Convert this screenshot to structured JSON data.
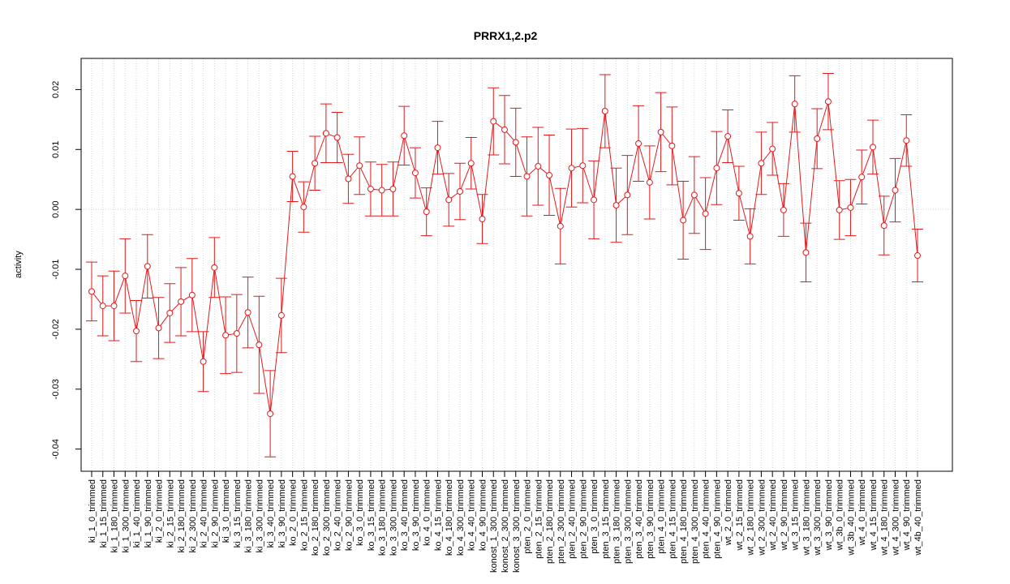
{
  "chart_data": {
    "type": "errorbar-line",
    "title": "PRRX1,2.p2",
    "y_label": "activity",
    "categories": [
      "ki_1_0_trimmed",
      "ki_1_15_trimmed",
      "ki_1_180_trimmed",
      "ki_1_300_trimmed",
      "ki_1_40_trimmed",
      "ki_1_90_trimmed",
      "ki_2_0_trimmed",
      "ki_2_15_trimmed",
      "ki_2_180_trimmed",
      "ki_2_300_trimmed",
      "ki_2_40_trimmed",
      "ki_2_90_trimmed",
      "ki_3_0_trimmed",
      "ki_3_15_trimmed",
      "ki_3_180_trimmed",
      "ki_3_300_trimmed",
      "ki_3_40_trimmed",
      "ki_3_90_trimmed",
      "ko_2_0_trimmed",
      "ko_2_15_trimmed",
      "ko_2_180_trimmed",
      "ko_2_300_trimmed",
      "ko_2_40_trimmed",
      "ko_2_90_trimmed",
      "ko_3_0_trimmed",
      "ko_3_15_trimmed",
      "ko_3_180_trimmed",
      "ko_3_300_trimmed",
      "ko_3_40_trimmed",
      "ko_3_90_trimmed",
      "ko_4_0_trimmed",
      "ko_4_15_trimmed",
      "ko_4_180_trimmed",
      "ko_4_300_trimmed",
      "ko_4_40_trimmed",
      "ko_4_90_trimmed",
      "konost_1_300_trimmed",
      "konost_2_300_trimmed",
      "konost_3_300_trimmed",
      "pten_2_0_trimmed",
      "pten_2_15_trimmed",
      "pten_2_180_trimmed",
      "pten_2_300_trimmed",
      "pten_2_40_trimmed",
      "pten_2_90_trimmed",
      "pten_3_0_trimmed",
      "pten_3_15_trimmed",
      "pten_3_180_trimmed",
      "pten_3_300_trimmed",
      "pten_3_40_trimmed",
      "pten_3_90_trimmed",
      "pten_4_0_trimmed",
      "pten_4_15_trimmed",
      "pten_4_180_trimmed",
      "pten_4_300_trimmed",
      "pten_4_40_trimmed",
      "pten_4_90_trimmed",
      "wt_2_0_trimmed",
      "wt_2_15_trimmed",
      "wt_2_180_trimmed",
      "wt_2_300_trimmed",
      "wt_2_40_trimmed",
      "wt_2_90_trimmed",
      "wt_3_15_trimmed",
      "wt_3_180_trimmed",
      "wt_3_300_trimmed",
      "wt_3_90_trimmed",
      "wt_3b_0_trimmed",
      "wt_3b_40_trimmed",
      "wt_4_0_trimmed",
      "wt_4_15_trimmed",
      "wt_4_180_trimmed",
      "wt_4_300_trimmed",
      "wt_4_90_trimmed",
      "wt_4b_40_trimmed"
    ],
    "series": [
      {
        "color": "#e31a1c",
        "values": [
          -0.0137,
          -0.0161,
          -0.0161,
          -0.0111,
          -0.0203,
          -0.0095,
          -0.0198,
          -0.0173,
          -0.0154,
          -0.0143,
          -0.0254,
          -0.0097,
          -0.021,
          -0.0207,
          -0.0172,
          -0.0226,
          -0.0341,
          -0.0177,
          0.0055,
          0.0004,
          0.0077,
          0.0127,
          0.012,
          0.0051,
          0.0073,
          0.0034,
          0.0032,
          0.0034,
          0.0123,
          0.0061,
          -0.0004,
          0.0103,
          0.0016,
          0.003,
          0.0077,
          -0.0016,
          0.0147,
          0.0133,
          0.0112,
          0.0055,
          0.0072,
          0.0057,
          -0.0028,
          0.0069,
          0.0073,
          0.0016,
          0.0164,
          0.0007,
          0.0024,
          0.011,
          0.0045,
          0.0129,
          0.0106,
          -0.0018,
          0.0024,
          -0.0007,
          0.0069,
          0.0122,
          0.0027,
          -0.0045,
          0.0077,
          0.0101,
          -0.0001,
          0.0176,
          -0.0072,
          0.0118,
          0.018,
          -0.0001,
          0.0003,
          0.0054,
          0.0104,
          -0.0027,
          0.0032,
          0.0115,
          -0.0077
        ],
        "errors": [
          0.0049,
          0.005,
          0.0058,
          0.0062,
          0.0051,
          0.0053,
          0.0051,
          0.0049,
          0.0057,
          0.0061,
          0.005,
          0.005,
          0.0064,
          0.0065,
          0.0059,
          0.0081,
          0.0072,
          0.0062,
          0.0042,
          0.0042,
          0.0045,
          0.0049,
          0.0042,
          0.0041,
          0.0048,
          0.0045,
          0.0043,
          0.0045,
          0.0049,
          0.0042,
          0.004,
          0.0044,
          0.0044,
          0.0047,
          0.0043,
          0.0041,
          0.0056,
          0.0057,
          0.0057,
          0.0066,
          0.0065,
          0.0067,
          0.0063,
          0.0065,
          0.0062,
          0.0065,
          0.0061,
          0.0062,
          0.0066,
          0.0063,
          0.0061,
          0.0066,
          0.0065,
          0.0065,
          0.0064,
          0.006,
          0.0061,
          0.0044,
          0.0045,
          0.0046,
          0.0052,
          0.0044,
          0.0044,
          0.0047,
          0.0049,
          0.005,
          0.0047,
          0.0049,
          0.0047,
          0.0045,
          0.0045,
          0.0049,
          0.0053,
          0.0043,
          0.0044
        ]
      }
    ],
    "ylim": [
      -0.0437,
      0.0252
    ],
    "yticks": [
      -0.04,
      -0.03,
      -0.02,
      -0.01,
      {
        "value": 0,
        "label": "0.00"
      },
      0.01,
      0.02
    ],
    "hline": 0,
    "grid": true
  }
}
